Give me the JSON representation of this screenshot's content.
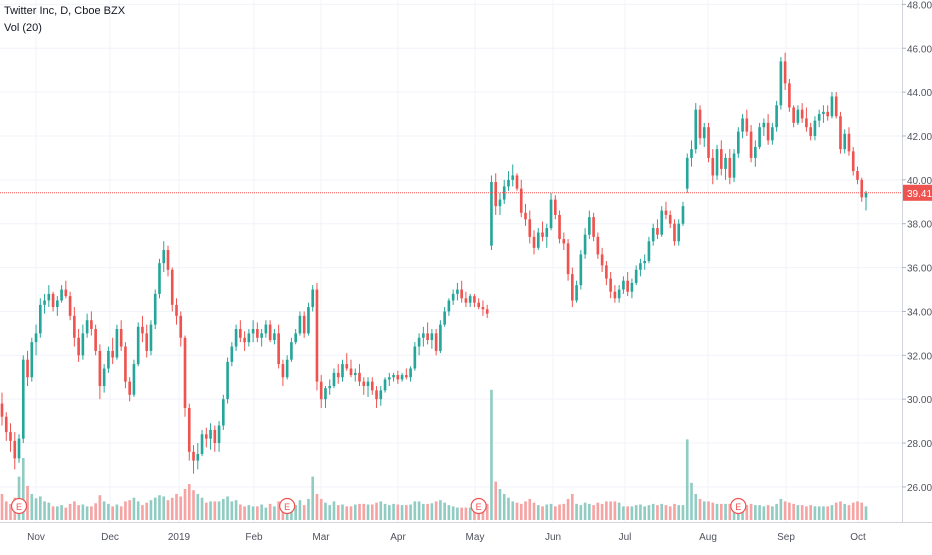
{
  "chart_data": {
    "type": "candlestick",
    "title": "Twitter Inc, D, Cboe BZX",
    "indicator": "Vol (20)",
    "last_price_label": "39.41",
    "last_price": 39.41,
    "y_ticks": [
      "48.00",
      "46.00",
      "44.00",
      "42.00",
      "40.00",
      "38.00",
      "36.00",
      "34.00",
      "32.00",
      "30.00",
      "28.00",
      "26.00"
    ],
    "y_tick_values": [
      48,
      46,
      44,
      42,
      40,
      38,
      36,
      34,
      32,
      30,
      28,
      26
    ],
    "ylim": [
      24.4,
      48.2
    ],
    "x_ticks": [
      "Nov",
      "Dec",
      "2019",
      "Feb",
      "Mar",
      "Apr",
      "May",
      "Jun",
      "Jul",
      "Aug",
      "Sep",
      "Oct"
    ],
    "earnings_marker": "E",
    "earnings_bar_index": [
      4,
      67,
      112,
      173
    ],
    "colors": {
      "up": "#26a69a",
      "down": "#ef5350",
      "up_volume": "#91ccc3",
      "down_volume": "#f5a3a3",
      "last_price_line": "#ef5350",
      "axis_text": "#50535e",
      "grid": "#f0f3fa"
    },
    "candles": [
      [
        29.8,
        30.3,
        28.8,
        29.2,
        0.42
      ],
      [
        29.2,
        29.4,
        28.1,
        28.5,
        0.3
      ],
      [
        28.5,
        28.9,
        27.6,
        28.1,
        0.26
      ],
      [
        28.1,
        28.5,
        26.8,
        27.3,
        0.36
      ],
      [
        27.3,
        28.4,
        27.1,
        28.2,
        0.7
      ],
      [
        28.2,
        32.0,
        28.0,
        31.8,
        1.0
      ],
      [
        31.8,
        32.2,
        30.6,
        31.0,
        0.55
      ],
      [
        31.0,
        32.8,
        30.8,
        32.6,
        0.42
      ],
      [
        32.6,
        33.4,
        32.0,
        33.0,
        0.35
      ],
      [
        33.0,
        34.6,
        32.8,
        34.3,
        0.38
      ],
      [
        34.3,
        34.8,
        33.9,
        34.5,
        0.3
      ],
      [
        34.5,
        35.2,
        34.2,
        34.8,
        0.28
      ],
      [
        34.8,
        34.9,
        34.0,
        34.2,
        0.22
      ],
      [
        34.2,
        34.7,
        33.8,
        34.5,
        0.22
      ],
      [
        34.5,
        35.2,
        34.4,
        35.0,
        0.24
      ],
      [
        35.0,
        35.4,
        34.6,
        34.7,
        0.2
      ],
      [
        34.7,
        34.9,
        33.6,
        33.8,
        0.26
      ],
      [
        33.8,
        34.2,
        32.4,
        32.8,
        0.3
      ],
      [
        32.8,
        33.2,
        31.7,
        32.0,
        0.24
      ],
      [
        32.0,
        33.4,
        31.8,
        33.0,
        0.25
      ],
      [
        33.0,
        33.9,
        32.8,
        33.6,
        0.22
      ],
      [
        33.6,
        34.0,
        32.9,
        33.2,
        0.22
      ],
      [
        33.2,
        33.4,
        32.0,
        32.2,
        0.27
      ],
      [
        32.2,
        32.5,
        30.0,
        30.6,
        0.4
      ],
      [
        30.6,
        31.6,
        30.3,
        31.4,
        0.3
      ],
      [
        31.4,
        32.4,
        31.2,
        32.2,
        0.26
      ],
      [
        32.2,
        32.8,
        31.6,
        31.9,
        0.22
      ],
      [
        31.9,
        33.4,
        31.8,
        33.2,
        0.25
      ],
      [
        33.2,
        33.6,
        32.2,
        32.4,
        0.22
      ],
      [
        32.4,
        32.6,
        30.5,
        30.8,
        0.3
      ],
      [
        30.8,
        31.0,
        29.9,
        30.2,
        0.32
      ],
      [
        30.2,
        31.8,
        30.1,
        31.6,
        0.36
      ],
      [
        31.6,
        33.5,
        31.5,
        33.3,
        0.3
      ],
      [
        33.3,
        33.8,
        32.6,
        33.0,
        0.24
      ],
      [
        33.0,
        33.4,
        31.9,
        32.2,
        0.28
      ],
      [
        32.2,
        33.6,
        32.0,
        33.4,
        0.32
      ],
      [
        33.4,
        35.0,
        33.2,
        34.8,
        0.36
      ],
      [
        34.8,
        36.4,
        34.6,
        36.2,
        0.4
      ],
      [
        36.2,
        37.2,
        35.8,
        36.8,
        0.38
      ],
      [
        36.8,
        37.0,
        35.6,
        35.9,
        0.32
      ],
      [
        35.9,
        36.0,
        34.0,
        34.3,
        0.36
      ],
      [
        34.3,
        34.6,
        33.4,
        33.8,
        0.42
      ],
      [
        33.8,
        34.0,
        32.4,
        32.8,
        0.38
      ],
      [
        32.8,
        32.9,
        29.2,
        29.6,
        0.5
      ],
      [
        29.6,
        29.8,
        27.2,
        27.6,
        0.58
      ],
      [
        27.6,
        27.9,
        26.6,
        27.2,
        0.48
      ],
      [
        27.2,
        28.0,
        26.8,
        27.5,
        0.42
      ],
      [
        27.5,
        28.6,
        27.4,
        28.4,
        0.36
      ],
      [
        28.4,
        28.7,
        27.8,
        28.2,
        0.28
      ],
      [
        28.2,
        28.9,
        27.7,
        28.6,
        0.3
      ],
      [
        28.6,
        28.8,
        27.6,
        28.0,
        0.3
      ],
      [
        28.0,
        29.0,
        27.6,
        28.8,
        0.3
      ],
      [
        28.8,
        30.2,
        28.6,
        30.0,
        0.34
      ],
      [
        30.0,
        31.9,
        29.8,
        31.7,
        0.38
      ],
      [
        31.7,
        32.6,
        31.5,
        32.4,
        0.3
      ],
      [
        32.4,
        33.4,
        32.2,
        33.2,
        0.32
      ],
      [
        33.2,
        33.6,
        32.6,
        32.8,
        0.25
      ],
      [
        32.8,
        33.1,
        32.2,
        32.6,
        0.22
      ],
      [
        32.6,
        33.2,
        32.4,
        33.0,
        0.24
      ],
      [
        33.0,
        33.6,
        32.6,
        33.2,
        0.22
      ],
      [
        33.2,
        33.5,
        32.6,
        32.8,
        0.22
      ],
      [
        32.8,
        33.2,
        32.4,
        33.0,
        0.25
      ],
      [
        33.0,
        33.6,
        32.8,
        33.4,
        0.2
      ],
      [
        33.4,
        33.6,
        32.6,
        32.7,
        0.26
      ],
      [
        32.7,
        33.2,
        32.5,
        33.0,
        0.22
      ],
      [
        33.0,
        33.4,
        31.4,
        31.6,
        0.3
      ],
      [
        31.6,
        31.8,
        30.6,
        31.0,
        0.28
      ],
      [
        31.0,
        32.0,
        30.9,
        31.8,
        0.3
      ],
      [
        31.8,
        32.8,
        31.7,
        32.6,
        0.24
      ],
      [
        32.6,
        33.2,
        32.5,
        33.0,
        0.24
      ],
      [
        33.0,
        34.0,
        32.9,
        33.8,
        0.32
      ],
      [
        33.8,
        34.0,
        32.8,
        33.0,
        0.24
      ],
      [
        33.0,
        34.4,
        32.9,
        34.2,
        0.34
      ],
      [
        34.2,
        35.2,
        34.0,
        35.0,
        0.7
      ],
      [
        35.0,
        35.3,
        30.4,
        30.8,
        0.42
      ],
      [
        30.8,
        31.1,
        29.6,
        30.0,
        0.34
      ],
      [
        30.0,
        30.6,
        29.6,
        30.5,
        0.28
      ],
      [
        30.5,
        30.9,
        30.2,
        30.6,
        0.24
      ],
      [
        30.6,
        31.4,
        30.5,
        31.2,
        0.3
      ],
      [
        31.2,
        31.6,
        30.7,
        31.0,
        0.24
      ],
      [
        31.0,
        31.8,
        30.8,
        31.6,
        0.25
      ],
      [
        31.6,
        32.1,
        31.3,
        31.4,
        0.22
      ],
      [
        31.4,
        31.8,
        31.0,
        31.1,
        0.22
      ],
      [
        31.1,
        31.4,
        30.8,
        31.2,
        0.25
      ],
      [
        31.2,
        31.6,
        30.6,
        30.8,
        0.26
      ],
      [
        30.8,
        31.0,
        30.2,
        30.6,
        0.26
      ],
      [
        30.6,
        31.0,
        30.1,
        30.8,
        0.25
      ],
      [
        30.8,
        31.0,
        30.2,
        30.4,
        0.25
      ],
      [
        30.4,
        30.6,
        29.6,
        30.0,
        0.28
      ],
      [
        30.0,
        30.6,
        29.7,
        30.4,
        0.3
      ],
      [
        30.4,
        31.0,
        30.3,
        30.9,
        0.26
      ],
      [
        30.9,
        31.2,
        30.6,
        31.0,
        0.24
      ],
      [
        31.0,
        31.2,
        30.8,
        31.1,
        0.26
      ],
      [
        31.1,
        31.3,
        30.7,
        30.9,
        0.25
      ],
      [
        30.9,
        31.2,
        30.8,
        31.1,
        0.24
      ],
      [
        31.1,
        31.4,
        30.9,
        31.0,
        0.24
      ],
      [
        31.0,
        31.5,
        30.8,
        31.4,
        0.25
      ],
      [
        31.4,
        32.6,
        31.3,
        32.4,
        0.3
      ],
      [
        32.4,
        33.0,
        32.0,
        32.8,
        0.3
      ],
      [
        32.8,
        33.3,
        32.4,
        33.0,
        0.26
      ],
      [
        33.0,
        33.5,
        32.5,
        32.7,
        0.26
      ],
      [
        32.7,
        33.2,
        32.3,
        33.0,
        0.27
      ],
      [
        33.0,
        33.2,
        32.0,
        32.2,
        0.3
      ],
      [
        32.2,
        33.6,
        32.1,
        33.4,
        0.32
      ],
      [
        33.4,
        34.2,
        33.3,
        34.0,
        0.28
      ],
      [
        34.0,
        34.6,
        33.8,
        34.5,
        0.24
      ],
      [
        34.5,
        35.0,
        34.3,
        34.8,
        0.22
      ],
      [
        34.8,
        35.3,
        34.5,
        35.0,
        0.2
      ],
      [
        35.0,
        35.4,
        34.4,
        34.6,
        0.2
      ],
      [
        34.6,
        34.9,
        34.2,
        34.4,
        0.2
      ],
      [
        34.4,
        34.8,
        34.2,
        34.7,
        0.2
      ],
      [
        34.7,
        34.8,
        34.2,
        34.4,
        0.2
      ],
      [
        34.4,
        34.6,
        34.1,
        34.2,
        0.18
      ],
      [
        34.2,
        34.5,
        33.8,
        34.1,
        0.22
      ],
      [
        34.1,
        34.3,
        33.7,
        33.9,
        0.26
      ],
      [
        37.0,
        40.2,
        36.8,
        39.9,
        2.1
      ],
      [
        39.9,
        40.3,
        38.4,
        38.8,
        0.62
      ],
      [
        38.8,
        39.4,
        38.4,
        39.1,
        0.5
      ],
      [
        39.1,
        40.0,
        38.9,
        39.7,
        0.42
      ],
      [
        39.7,
        40.4,
        39.5,
        40.0,
        0.36
      ],
      [
        40.0,
        40.7,
        39.7,
        40.2,
        0.3
      ],
      [
        40.2,
        40.3,
        39.5,
        39.6,
        0.28
      ],
      [
        39.6,
        40.0,
        38.3,
        38.5,
        0.26
      ],
      [
        38.5,
        38.9,
        37.9,
        38.2,
        0.3
      ],
      [
        38.2,
        38.6,
        37.1,
        37.4,
        0.34
      ],
      [
        37.4,
        37.7,
        36.6,
        36.9,
        0.28
      ],
      [
        36.9,
        37.8,
        36.8,
        37.6,
        0.24
      ],
      [
        37.6,
        38.1,
        37.2,
        37.4,
        0.22
      ],
      [
        37.4,
        38.0,
        36.9,
        37.8,
        0.25
      ],
      [
        37.8,
        39.4,
        37.7,
        39.1,
        0.26
      ],
      [
        39.1,
        39.3,
        38.2,
        38.4,
        0.22
      ],
      [
        38.4,
        38.6,
        37.1,
        37.3,
        0.25
      ],
      [
        37.3,
        37.6,
        36.8,
        37.1,
        0.26
      ],
      [
        37.1,
        37.3,
        35.4,
        35.7,
        0.34
      ],
      [
        35.7,
        36.0,
        34.2,
        34.5,
        0.42
      ],
      [
        34.5,
        35.4,
        34.4,
        35.2,
        0.26
      ],
      [
        35.2,
        36.8,
        35.0,
        36.6,
        0.24
      ],
      [
        36.6,
        37.8,
        36.4,
        37.5,
        0.28
      ],
      [
        37.5,
        38.6,
        37.3,
        38.3,
        0.26
      ],
      [
        38.3,
        38.5,
        37.2,
        37.4,
        0.24
      ],
      [
        37.4,
        37.6,
        36.4,
        36.6,
        0.28
      ],
      [
        36.6,
        36.9,
        35.8,
        36.1,
        0.26
      ],
      [
        36.1,
        36.3,
        35.2,
        35.5,
        0.3
      ],
      [
        35.5,
        35.8,
        34.6,
        34.9,
        0.3
      ],
      [
        34.9,
        35.2,
        34.4,
        34.6,
        0.3
      ],
      [
        34.6,
        35.2,
        34.4,
        35.0,
        0.28
      ],
      [
        35.0,
        35.6,
        34.8,
        35.4,
        0.22
      ],
      [
        35.4,
        35.8,
        34.7,
        34.9,
        0.22
      ],
      [
        34.9,
        35.5,
        34.6,
        35.3,
        0.22
      ],
      [
        35.3,
        36.1,
        35.2,
        35.9,
        0.24
      ],
      [
        35.9,
        36.4,
        35.6,
        36.2,
        0.25
      ],
      [
        36.2,
        36.6,
        35.9,
        36.3,
        0.22
      ],
      [
        36.3,
        37.4,
        36.2,
        37.2,
        0.24
      ],
      [
        37.2,
        38.0,
        37.0,
        37.8,
        0.26
      ],
      [
        37.8,
        38.2,
        37.3,
        37.5,
        0.24
      ],
      [
        37.5,
        38.8,
        37.4,
        38.6,
        0.26
      ],
      [
        38.6,
        39.0,
        38.2,
        38.4,
        0.24
      ],
      [
        38.4,
        38.6,
        37.8,
        38.0,
        0.22
      ],
      [
        38.0,
        38.2,
        37.0,
        37.2,
        0.26
      ],
      [
        37.2,
        38.2,
        37.0,
        38.0,
        0.24
      ],
      [
        38.0,
        39.0,
        37.9,
        38.8,
        0.24
      ],
      [
        39.6,
        41.2,
        39.4,
        41.0,
        1.3
      ],
      [
        41.0,
        41.8,
        40.6,
        41.4,
        0.6
      ],
      [
        41.4,
        43.5,
        41.2,
        43.2,
        0.42
      ],
      [
        43.2,
        43.4,
        41.6,
        41.9,
        0.34
      ],
      [
        41.9,
        42.6,
        41.5,
        42.4,
        0.3
      ],
      [
        42.4,
        42.6,
        40.8,
        41.0,
        0.3
      ],
      [
        41.0,
        41.4,
        39.8,
        40.2,
        0.28
      ],
      [
        40.2,
        41.6,
        40.0,
        41.4,
        0.26
      ],
      [
        41.4,
        41.8,
        40.2,
        40.5,
        0.26
      ],
      [
        40.5,
        41.2,
        40.0,
        41.0,
        0.26
      ],
      [
        41.0,
        41.4,
        39.8,
        40.1,
        0.26
      ],
      [
        40.1,
        41.4,
        39.9,
        41.2,
        0.25
      ],
      [
        41.2,
        42.4,
        41.0,
        42.2,
        0.26
      ],
      [
        42.2,
        43.0,
        41.9,
        42.8,
        0.26
      ],
      [
        42.8,
        43.2,
        42.0,
        42.2,
        0.24
      ],
      [
        42.2,
        42.5,
        40.8,
        41.0,
        0.26
      ],
      [
        41.0,
        41.8,
        40.6,
        41.5,
        0.24
      ],
      [
        41.5,
        42.6,
        41.4,
        42.4,
        0.24
      ],
      [
        42.4,
        42.8,
        42.0,
        42.6,
        0.22
      ],
      [
        42.6,
        43.0,
        41.6,
        41.8,
        0.24
      ],
      [
        41.8,
        42.6,
        41.6,
        42.4,
        0.22
      ],
      [
        42.4,
        43.6,
        42.2,
        43.4,
        0.26
      ],
      [
        43.4,
        45.6,
        43.2,
        45.4,
        0.34
      ],
      [
        45.4,
        45.8,
        44.1,
        44.4,
        0.3
      ],
      [
        44.4,
        44.6,
        43.1,
        43.3,
        0.28
      ],
      [
        43.3,
        43.4,
        42.4,
        42.6,
        0.26
      ],
      [
        42.6,
        43.4,
        42.5,
        43.2,
        0.24
      ],
      [
        43.2,
        43.5,
        42.6,
        42.8,
        0.24
      ],
      [
        42.8,
        43.3,
        42.2,
        42.4,
        0.22
      ],
      [
        42.4,
        42.6,
        41.8,
        42.0,
        0.24
      ],
      [
        42.0,
        42.9,
        41.8,
        42.7,
        0.22
      ],
      [
        42.7,
        43.2,
        42.4,
        43.0,
        0.22
      ],
      [
        43.0,
        43.4,
        42.6,
        43.1,
        0.22
      ],
      [
        43.1,
        43.4,
        42.7,
        42.9,
        0.22
      ],
      [
        42.9,
        44.0,
        42.8,
        43.8,
        0.24
      ],
      [
        43.8,
        44.0,
        42.8,
        42.9,
        0.28
      ],
      [
        42.9,
        43.1,
        41.2,
        41.4,
        0.3
      ],
      [
        41.4,
        42.3,
        41.2,
        42.1,
        0.26
      ],
      [
        42.1,
        42.4,
        41.1,
        41.3,
        0.24
      ],
      [
        41.3,
        41.5,
        40.2,
        40.4,
        0.28
      ],
      [
        40.4,
        40.6,
        39.8,
        40.0,
        0.3
      ],
      [
        40.0,
        40.1,
        39.0,
        39.2,
        0.28
      ],
      [
        39.2,
        39.5,
        38.6,
        39.41,
        0.22
      ]
    ]
  }
}
